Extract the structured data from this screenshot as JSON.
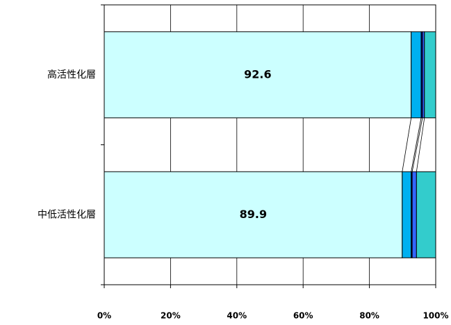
{
  "chart_data": {
    "type": "stacked_hbar",
    "categories": [
      "高活性化層",
      "中低活性化層"
    ],
    "series": [
      {
        "color": "#ccffff",
        "values": [
          92.6,
          89.9
        ]
      },
      {
        "color": "#00b0f0",
        "values": [
          3.0,
          2.7
        ]
      },
      {
        "color": "#000080",
        "values": [
          0.4,
          0.3
        ]
      },
      {
        "color": "#3366ff",
        "values": [
          0.6,
          1.3
        ]
      },
      {
        "color": "#33cccc",
        "values": [
          3.4,
          5.8
        ]
      }
    ],
    "label_series": 0,
    "xlim": [
      0,
      100
    ],
    "xticks": [
      {
        "value": 0,
        "label": "0%"
      },
      {
        "value": 20,
        "label": "20%"
      },
      {
        "value": 40,
        "label": "40%"
      },
      {
        "value": 60,
        "label": "60%"
      },
      {
        "value": 80,
        "label": "80%"
      },
      {
        "value": 100,
        "label": "100%"
      }
    ],
    "grid": true
  }
}
